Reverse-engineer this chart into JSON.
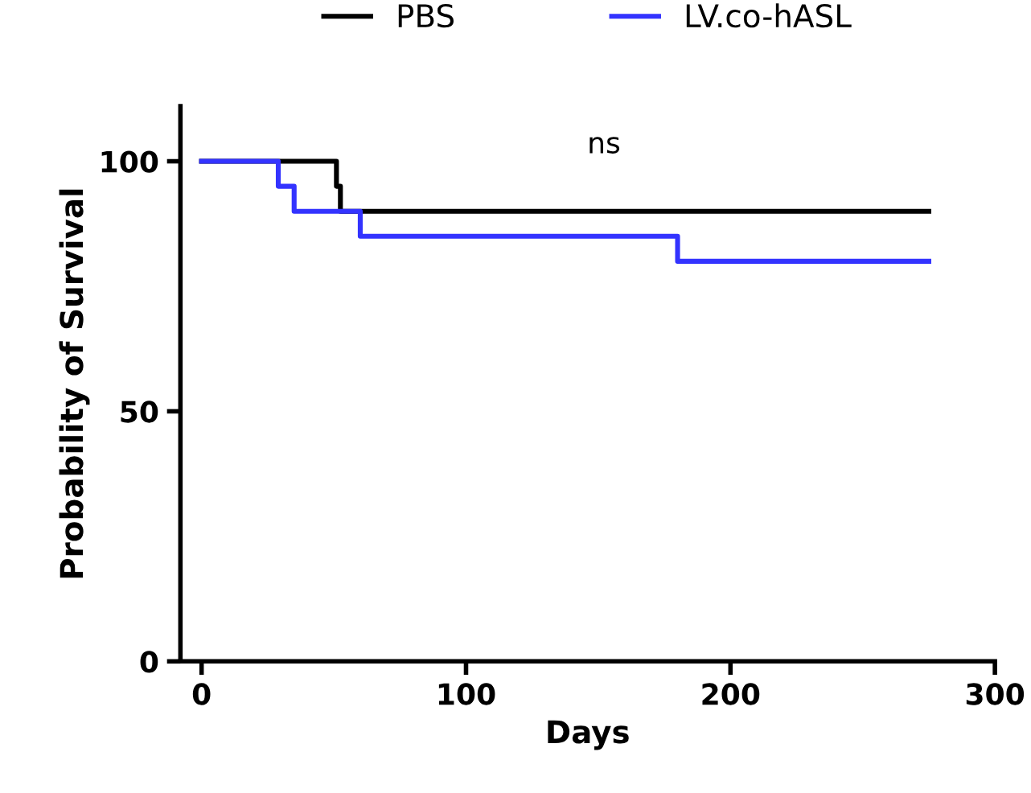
{
  "chart_data": {
    "type": "step",
    "xlabel": "Days",
    "ylabel": "Probability of Survival",
    "series": [
      {
        "name": "PBS",
        "color": "#000000",
        "x": [
          0,
          51,
          52.5,
          275
        ],
        "values": [
          100,
          95,
          90,
          90
        ]
      },
      {
        "name": "LV.co-hASL",
        "color": "#3333ff",
        "x": [
          0,
          29,
          35,
          60,
          180,
          275
        ],
        "values": [
          100,
          95,
          90,
          85,
          80,
          80
        ]
      }
    ],
    "xlim": [
      -8,
      300
    ],
    "xticks": [
      0,
      100,
      200,
      300
    ],
    "ylim": [
      0,
      111
    ],
    "yticks": [
      0,
      50,
      100
    ],
    "annotations": [
      "ns"
    ],
    "legend": "top",
    "grid": false
  }
}
